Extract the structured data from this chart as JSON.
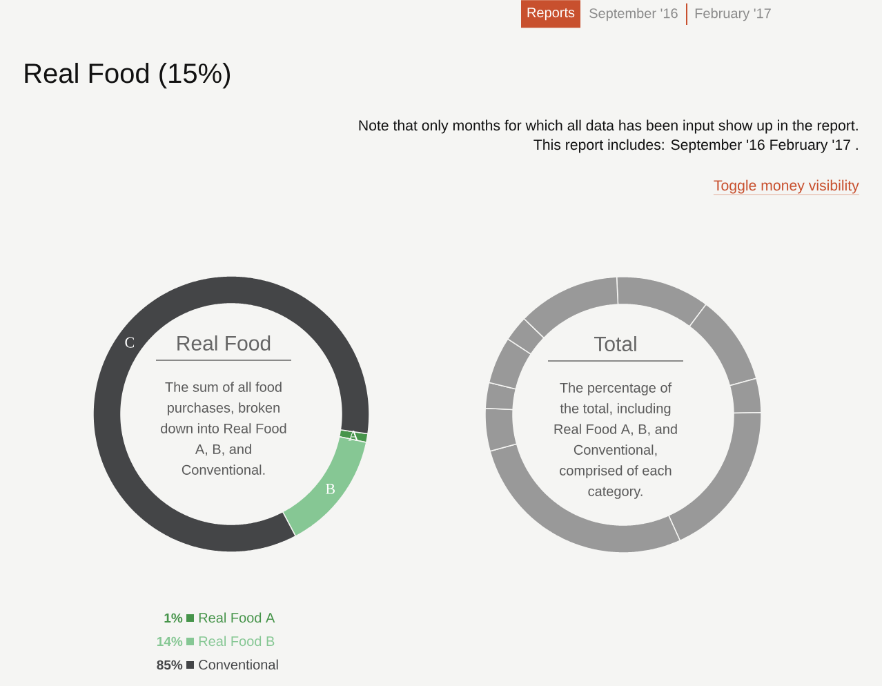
{
  "chart_data": [
    {
      "type": "other",
      "title": "Real Food (15%)",
      "annotations": [
        "Reports",
        "September '16",
        "February '17",
        "Note that only months for which all data has been input show up in the report.",
        "This report includes: September '16 February '17 .",
        "Toggle money visibility"
      ]
    },
    {
      "type": "donut",
      "title": "Real Food",
      "subtitle": "The sum of all food purchases, broken down into Real Food A, B, and Conventional.",
      "categories": [
        "Real Food A",
        "Real Food B",
        "Conventional"
      ],
      "values": [
        1,
        14,
        85
      ],
      "colors": [
        "#46944a",
        "#86c794",
        "#444547"
      ],
      "value_labels": [
        "1%",
        "14%",
        "85%"
      ],
      "annotations": [
        "A",
        "B",
        "C"
      ],
      "legend": "bottom"
    },
    {
      "type": "donut",
      "title": "Total",
      "subtitle": "The percentage of the total, including Real Food A, B, and Conventional, comprised of each category.",
      "categories": [
        null,
        null,
        null,
        null,
        null,
        null,
        null,
        null,
        null,
        null
      ],
      "values": [
        11,
        10.5,
        4,
        18.5,
        27.5,
        5,
        3,
        5.5,
        3,
        12
      ],
      "colors": [
        "#999999",
        "#999999",
        "#999999",
        "#999999",
        "#999999",
        "#999999",
        "#999999",
        "#999999",
        "#999999",
        "#999999"
      ]
    }
  ]
}
